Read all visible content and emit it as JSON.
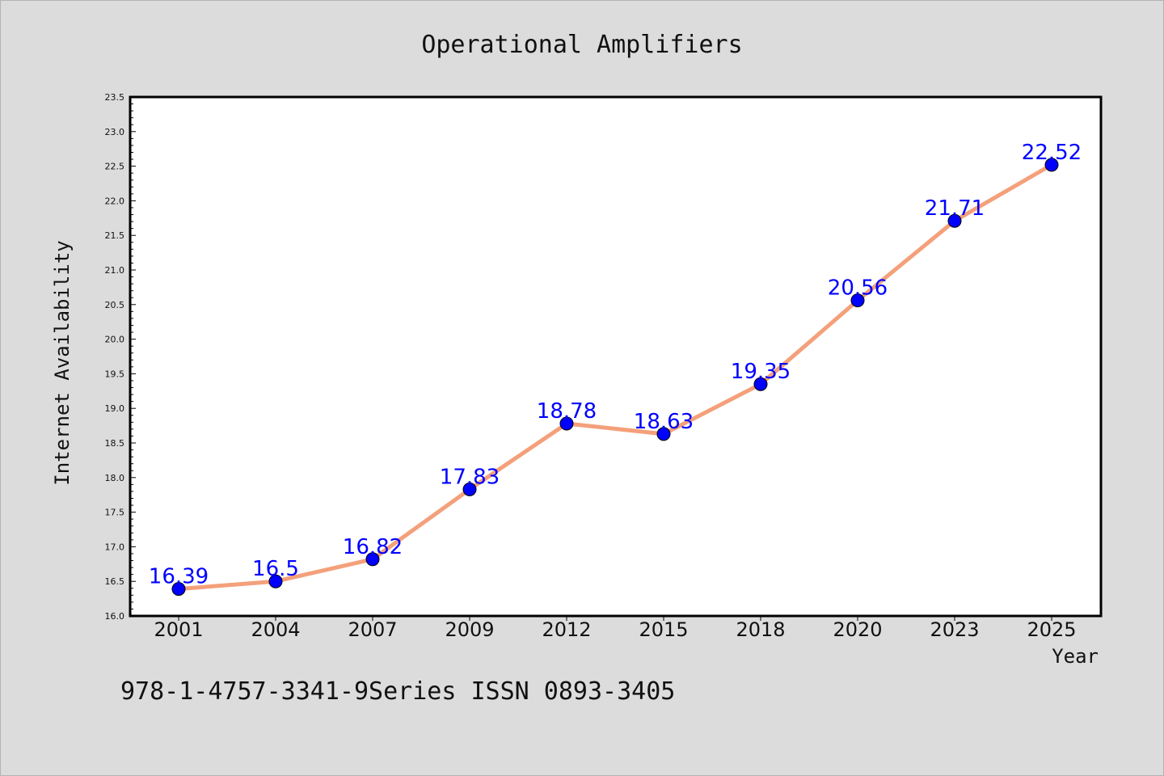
{
  "chart_data": {
    "type": "line",
    "title": "Operational Amplifiers",
    "xlabel": "Year",
    "ylabel": "Internet Availability",
    "categories": [
      "2001",
      "2004",
      "2007",
      "2009",
      "2012",
      "2015",
      "2018",
      "2020",
      "2023",
      "2025"
    ],
    "series": [
      {
        "values": [
          16.39,
          16.5,
          16.82,
          17.83,
          18.78,
          18.63,
          19.35,
          20.56,
          21.71,
          22.52
        ]
      }
    ],
    "data_labels": [
      "16.39",
      "16.5",
      "16.82",
      "17.83",
      "18.78",
      "18.63",
      "19.35",
      "20.56",
      "21.71",
      "22.52"
    ],
    "ylim": [
      16.0,
      23.5
    ],
    "yticks": [
      "16.0",
      "16.5",
      "17.0",
      "17.5",
      "18.0",
      "18.5",
      "19.0",
      "19.5",
      "20.0",
      "20.5",
      "21.0",
      "21.5",
      "22.0",
      "22.5",
      "23.0",
      "23.5"
    ],
    "grid": false,
    "legend": "none",
    "colors": {
      "line": "#f4a07a",
      "marker": "#0000ff",
      "data_label": "#0000ff",
      "background": "#dcdcdc",
      "plot_background": "#ffffff"
    }
  },
  "footer": {
    "text": "978-1-4757-3341-9Series ISSN 0893-3405"
  }
}
